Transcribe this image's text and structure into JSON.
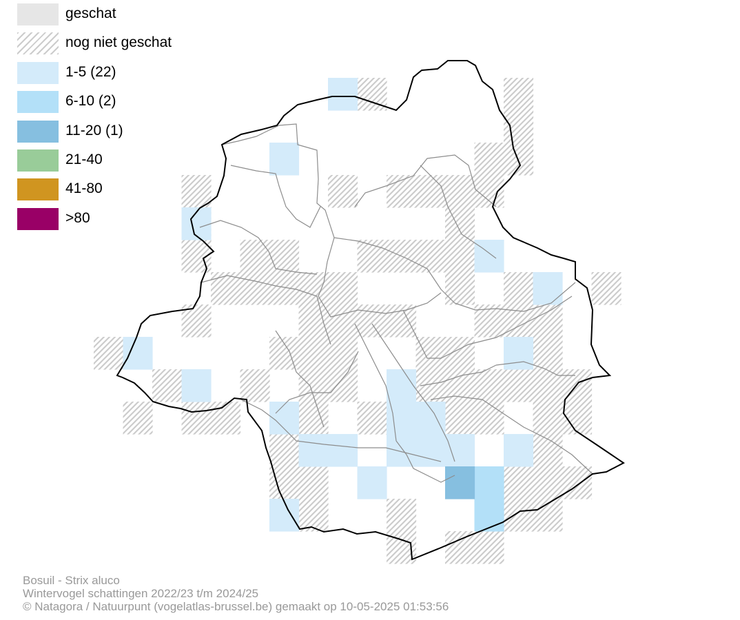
{
  "legend": {
    "items": [
      {
        "label": "geschat",
        "color": "#e6e6e6",
        "pattern": "solid"
      },
      {
        "label": "nog niet geschat",
        "color": "#cccccc",
        "pattern": "hatch"
      },
      {
        "label": "1-5 (22)",
        "color": "#d4ebfa",
        "pattern": "solid"
      },
      {
        "label": "6-10 (2)",
        "color": "#b3e0f8",
        "pattern": "solid"
      },
      {
        "label": "11-20 (1)",
        "color": "#86bfe0",
        "pattern": "solid"
      },
      {
        "label": "21-40",
        "color": "#99cc99",
        "pattern": "solid"
      },
      {
        "label": "41-80",
        "color": "#d09520",
        "pattern": "solid"
      },
      {
        "label": ">80",
        "color": "#990066",
        "pattern": "solid"
      }
    ]
  },
  "caption": {
    "species": "Bosuil - Strix aluco",
    "period": "Wintervogel schattingen 2022/23 t/m 2024/25",
    "credit": "© Natagora / Natuurpunt (vogelatlas-brussel.be) gemaakt op 10-05-2025 01:53:56"
  },
  "map": {
    "hatch_color": "#cccccc",
    "boundary_color": "#000000",
    "municipality_line_color": "#8c8c8c"
  }
}
